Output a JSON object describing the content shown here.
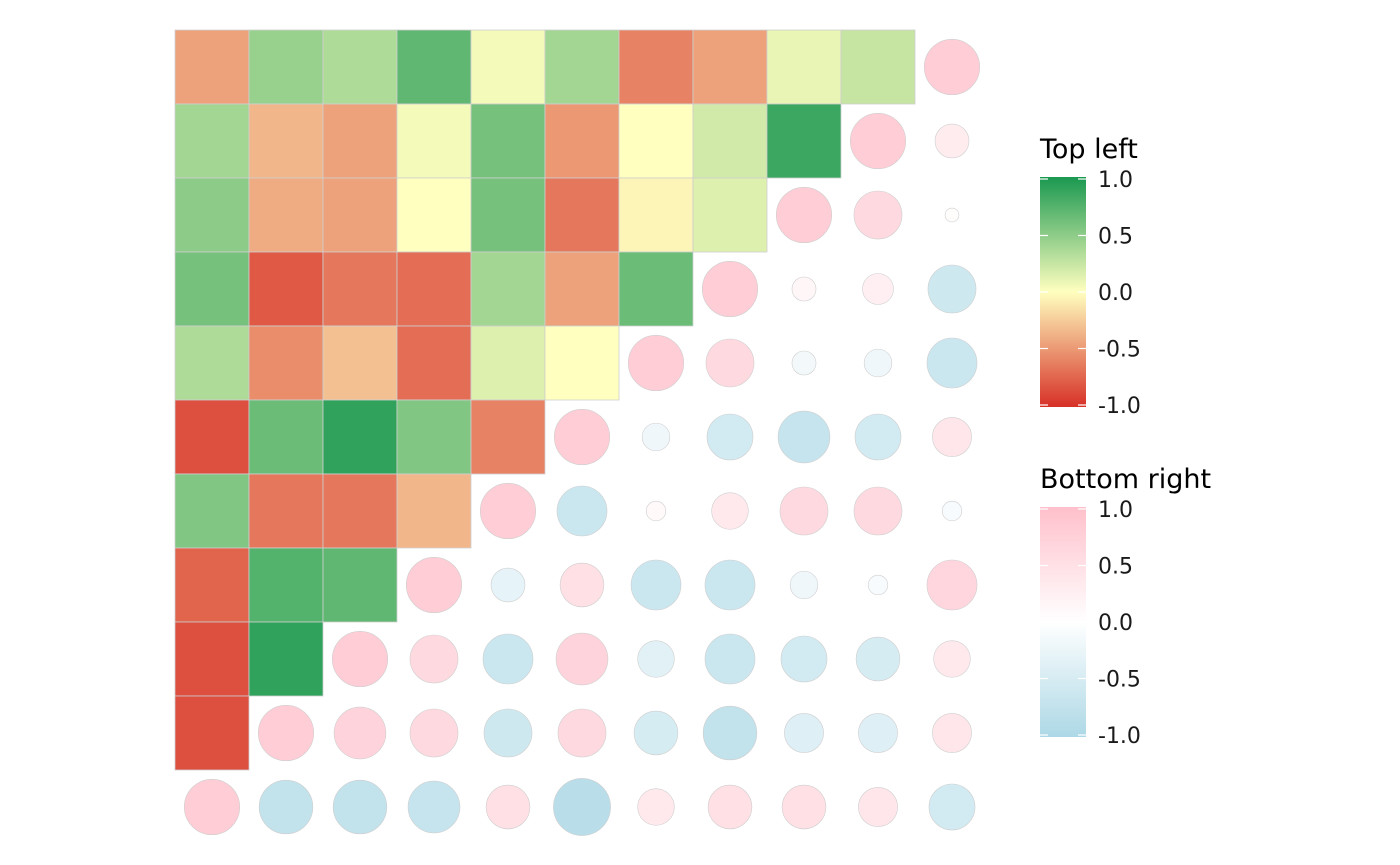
{
  "chart_data": {
    "type": "heatmap",
    "description_hidden": false,
    "size": 11,
    "upper_left": {
      "shape": "tile",
      "legend_title": "Top left",
      "colors": {
        "low": "#d73027",
        "mid": "#ffffbf",
        "high": "#1a9850"
      },
      "limits": [
        -1.0,
        1.0
      ],
      "ticks": [
        "1.0",
        "0.5",
        "0.0",
        "-0.5",
        "-1.0"
      ],
      "rows": [
        [
          -0.45,
          0.45,
          0.35,
          0.7,
          0.05,
          0.4,
          -0.6,
          -0.45,
          0.1,
          0.25
        ],
        [
          0.4,
          -0.35,
          -0.45,
          0.05,
          0.6,
          -0.5,
          0.0,
          0.2,
          0.85
        ],
        [
          0.5,
          -0.4,
          -0.45,
          0.0,
          0.6,
          -0.65,
          -0.05,
          0.15
        ],
        [
          0.6,
          -0.8,
          -0.65,
          -0.7,
          0.4,
          -0.45,
          0.65
        ],
        [
          0.35,
          -0.55,
          -0.3,
          -0.7,
          0.15,
          0.0
        ],
        [
          -0.85,
          0.65,
          0.9,
          0.55,
          -0.6
        ],
        [
          0.55,
          -0.65,
          -0.65,
          -0.35
        ],
        [
          -0.75,
          0.75,
          0.7
        ],
        [
          -0.85,
          0.9
        ],
        [
          -0.85
        ]
      ]
    },
    "lower_right": {
      "shape": "circle",
      "legend_title": "Bottom right",
      "colors": {
        "low": "#add8e6",
        "mid": "#ffffff",
        "high": "#ffc0cb"
      },
      "limits": [
        -1.0,
        1.0
      ],
      "ticks": [
        "1.0",
        "0.5",
        "0.0",
        "-0.5",
        "-1.0"
      ],
      "rows": [
        [
          0.8
        ],
        [
          0.8,
          0.3
        ],
        [
          0.8,
          0.6,
          0.05
        ],
        [
          0.8,
          0.15,
          0.25,
          -0.6
        ],
        [
          0.8,
          0.6,
          -0.15,
          -0.2,
          -0.65
        ],
        [
          0.8,
          -0.2,
          -0.55,
          -0.7,
          -0.55,
          0.4
        ],
        [
          0.8,
          -0.65,
          0.1,
          0.35,
          0.6,
          0.6,
          -0.1
        ],
        [
          0.8,
          -0.3,
          0.5,
          -0.65,
          -0.65,
          -0.2,
          -0.1,
          0.65
        ],
        [
          0.8,
          0.6,
          -0.65,
          0.7,
          -0.35,
          -0.65,
          -0.55,
          -0.5,
          0.35
        ],
        [
          0.8,
          0.7,
          0.6,
          -0.6,
          0.6,
          -0.5,
          -0.75,
          -0.4,
          -0.4,
          0.4
        ],
        [
          0.8,
          -0.75,
          -0.75,
          -0.7,
          0.5,
          -0.85,
          0.35,
          0.5,
          0.5,
          0.4,
          -0.55
        ]
      ]
    }
  }
}
